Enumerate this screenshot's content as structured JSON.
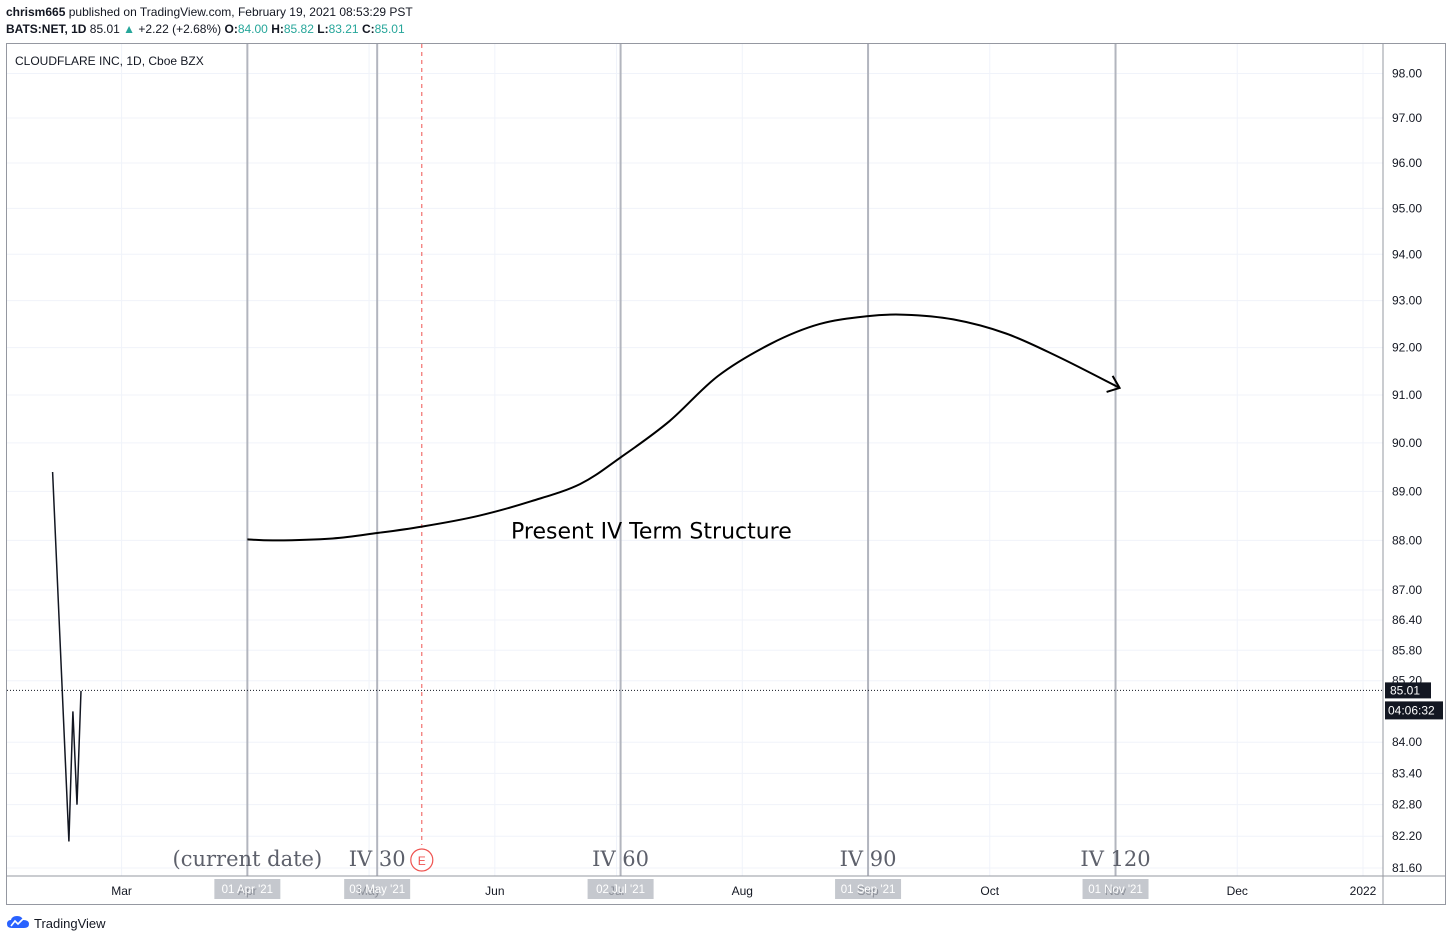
{
  "header": {
    "user": "chrism665",
    "published_text": "published on TradingView.com, February 19, 2021 08:53:29 PST",
    "symbol": "BATS:NET, 1D",
    "price": "85.01",
    "change_arrow": "▲",
    "change": "+2.22 (+2.68%)",
    "open_label": "O:",
    "open": "84.00",
    "high_label": "H:",
    "high": "85.82",
    "low_label": "L:",
    "low": "83.21",
    "close_label": "C:",
    "close": "85.01"
  },
  "footer": {
    "brand": "TradingView",
    "brand_icon": "tradingview-logo-icon"
  },
  "colors": {
    "up": "#26a69a",
    "grid": "#f0f3fa",
    "vline": "#b2b5be",
    "earnings": "#ef5350",
    "axis_text": "#131722"
  },
  "chart_data": {
    "type": "line",
    "title": "CLOUDFLARE INC, 1D, Cboe BZX",
    "x_axis": {
      "ticks": [
        {
          "date": "2021-03-01",
          "label": "Mar"
        },
        {
          "date": "2021-04-01",
          "label": "Apr"
        },
        {
          "date": "2021-05-01",
          "label": "May"
        },
        {
          "date": "2021-06-01",
          "label": "Jun"
        },
        {
          "date": "2021-07-01",
          "label": "Jul"
        },
        {
          "date": "2021-08-01",
          "label": "Aug"
        },
        {
          "date": "2021-09-01",
          "label": "Sep"
        },
        {
          "date": "2021-10-01",
          "label": "Oct"
        },
        {
          "date": "2021-11-01",
          "label": "Nov"
        },
        {
          "date": "2021-12-01",
          "label": "Dec"
        },
        {
          "date": "2022-01-01",
          "label": "2022"
        }
      ]
    },
    "y_axis": {
      "scale": "log",
      "ticks": [
        98.0,
        97.0,
        96.0,
        95.0,
        94.0,
        93.0,
        92.0,
        91.0,
        90.0,
        89.0,
        88.0,
        87.0,
        86.4,
        85.8,
        85.2,
        84.0,
        83.4,
        82.8,
        82.2,
        81.6
      ],
      "tick_labels": [
        "98.00",
        "97.00",
        "96.00",
        "95.00",
        "94.00",
        "93.00",
        "92.00",
        "91.00",
        "90.00",
        "89.00",
        "88.00",
        "87.00",
        "86.40",
        "85.80",
        "85.20",
        "84.00",
        "83.40",
        "82.80",
        "82.20",
        "81.60"
      ]
    },
    "price_series": {
      "x": [
        "2021-02-12",
        "2021-02-16",
        "2021-02-17",
        "2021-02-18",
        "2021-02-19"
      ],
      "y": [
        89.4,
        82.1,
        84.6,
        82.8,
        85.0
      ]
    },
    "last_price_label": "85.01",
    "countdown_label": "04:06:32",
    "grid": true,
    "vertical_markers": [
      {
        "date": "2021-04-01",
        "axis_label": "01 Apr '21",
        "annotation": "(current date)"
      },
      {
        "date": "2021-05-03",
        "axis_label": "03 May '21",
        "annotation": "IV 30"
      },
      {
        "date": "2021-07-02",
        "axis_label": "02 Jul '21",
        "annotation": "IV 60"
      },
      {
        "date": "2021-09-01",
        "axis_label": "01 Sep '21",
        "annotation": "IV 90"
      },
      {
        "date": "2021-11-01",
        "axis_label": "01 Nov '21",
        "annotation": "IV 120"
      }
    ],
    "earnings_marker": {
      "date": "2021-05-14",
      "label": "E"
    },
    "term_structure_curve": {
      "label": "Present IV Term Structure",
      "label_position": {
        "date": "2021-06-05",
        "value": 88.0
      },
      "points": [
        {
          "date": "2021-04-01",
          "value": 88.02
        },
        {
          "date": "2021-04-08",
          "value": 88.0
        },
        {
          "date": "2021-04-22",
          "value": 88.04
        },
        {
          "date": "2021-05-03",
          "value": 88.15
        },
        {
          "date": "2021-05-14",
          "value": 88.28
        },
        {
          "date": "2021-05-28",
          "value": 88.5
        },
        {
          "date": "2021-06-10",
          "value": 88.8
        },
        {
          "date": "2021-06-22",
          "value": 89.15
        },
        {
          "date": "2021-07-02",
          "value": 89.7
        },
        {
          "date": "2021-07-14",
          "value": 90.45
        },
        {
          "date": "2021-07-26",
          "value": 91.4
        },
        {
          "date": "2021-08-08",
          "value": 92.08
        },
        {
          "date": "2021-08-20",
          "value": 92.5
        },
        {
          "date": "2021-09-01",
          "value": 92.67
        },
        {
          "date": "2021-09-10",
          "value": 92.7
        },
        {
          "date": "2021-09-22",
          "value": 92.6
        },
        {
          "date": "2021-10-05",
          "value": 92.3
        },
        {
          "date": "2021-10-18",
          "value": 91.8
        },
        {
          "date": "2021-11-02",
          "value": 91.15
        }
      ]
    }
  }
}
